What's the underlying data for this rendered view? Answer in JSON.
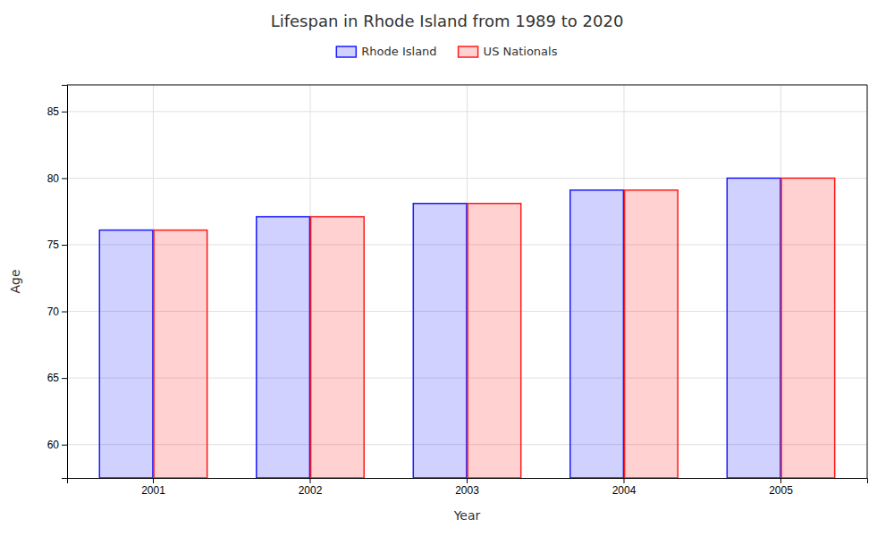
{
  "chart_data": {
    "type": "bar",
    "title": "Lifespan in Rhode Island from 1989 to 2020",
    "xlabel": "Year",
    "ylabel": "Age",
    "categories": [
      "2001",
      "2002",
      "2003",
      "2004",
      "2005"
    ],
    "series": [
      {
        "name": "Rhode Island",
        "color": "#1a1aff",
        "values": [
          76.1,
          77.1,
          78.1,
          79.1,
          80.0
        ]
      },
      {
        "name": "US Nationals",
        "color": "#ff1a1a",
        "values": [
          76.1,
          77.1,
          78.1,
          79.1,
          80.0
        ]
      }
    ],
    "ylim": [
      57.5,
      87
    ],
    "yticks": [
      60,
      65,
      70,
      75,
      80,
      85
    ],
    "grid": true,
    "legend": "top"
  }
}
